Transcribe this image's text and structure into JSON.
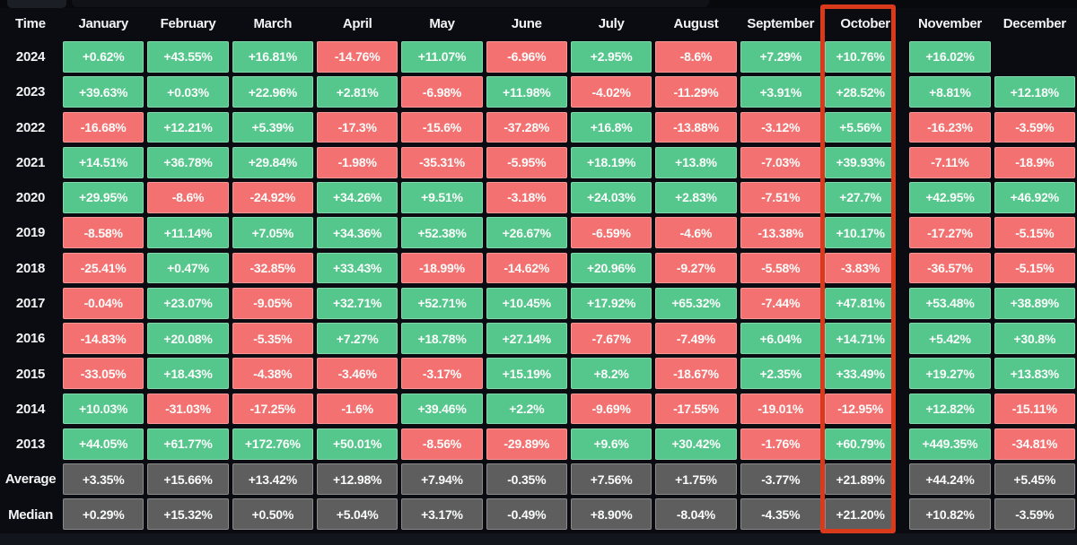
{
  "header": {
    "time_label": "Time"
  },
  "chart_data": {
    "type": "heatmap",
    "columns": [
      "January",
      "February",
      "March",
      "April",
      "May",
      "June",
      "July",
      "August",
      "September",
      "October",
      "November",
      "December"
    ],
    "highlighted_column": "October",
    "rows": [
      {
        "label": "2024",
        "kind": "year",
        "values": [
          "+0.62%",
          "+43.55%",
          "+16.81%",
          "-14.76%",
          "+11.07%",
          "-6.96%",
          "+2.95%",
          "-8.6%",
          "+7.29%",
          "+10.76%",
          "+16.02%",
          ""
        ]
      },
      {
        "label": "2023",
        "kind": "year",
        "values": [
          "+39.63%",
          "+0.03%",
          "+22.96%",
          "+2.81%",
          "-6.98%",
          "+11.98%",
          "-4.02%",
          "-11.29%",
          "+3.91%",
          "+28.52%",
          "+8.81%",
          "+12.18%"
        ]
      },
      {
        "label": "2022",
        "kind": "year",
        "values": [
          "-16.68%",
          "+12.21%",
          "+5.39%",
          "-17.3%",
          "-15.6%",
          "-37.28%",
          "+16.8%",
          "-13.88%",
          "-3.12%",
          "+5.56%",
          "-16.23%",
          "-3.59%"
        ]
      },
      {
        "label": "2021",
        "kind": "year",
        "values": [
          "+14.51%",
          "+36.78%",
          "+29.84%",
          "-1.98%",
          "-35.31%",
          "-5.95%",
          "+18.19%",
          "+13.8%",
          "-7.03%",
          "+39.93%",
          "-7.11%",
          "-18.9%"
        ]
      },
      {
        "label": "2020",
        "kind": "year",
        "values": [
          "+29.95%",
          "-8.6%",
          "-24.92%",
          "+34.26%",
          "+9.51%",
          "-3.18%",
          "+24.03%",
          "+2.83%",
          "-7.51%",
          "+27.7%",
          "+42.95%",
          "+46.92%"
        ]
      },
      {
        "label": "2019",
        "kind": "year",
        "values": [
          "-8.58%",
          "+11.14%",
          "+7.05%",
          "+34.36%",
          "+52.38%",
          "+26.67%",
          "-6.59%",
          "-4.6%",
          "-13.38%",
          "+10.17%",
          "-17.27%",
          "-5.15%"
        ]
      },
      {
        "label": "2018",
        "kind": "year",
        "values": [
          "-25.41%",
          "+0.47%",
          "-32.85%",
          "+33.43%",
          "-18.99%",
          "-14.62%",
          "+20.96%",
          "-9.27%",
          "-5.58%",
          "-3.83%",
          "-36.57%",
          "-5.15%"
        ]
      },
      {
        "label": "2017",
        "kind": "year",
        "values": [
          "-0.04%",
          "+23.07%",
          "-9.05%",
          "+32.71%",
          "+52.71%",
          "+10.45%",
          "+17.92%",
          "+65.32%",
          "-7.44%",
          "+47.81%",
          "+53.48%",
          "+38.89%"
        ]
      },
      {
        "label": "2016",
        "kind": "year",
        "values": [
          "-14.83%",
          "+20.08%",
          "-5.35%",
          "+7.27%",
          "+18.78%",
          "+27.14%",
          "-7.67%",
          "-7.49%",
          "+6.04%",
          "+14.71%",
          "+5.42%",
          "+30.8%"
        ]
      },
      {
        "label": "2015",
        "kind": "year",
        "values": [
          "-33.05%",
          "+18.43%",
          "-4.38%",
          "-3.46%",
          "-3.17%",
          "+15.19%",
          "+8.2%",
          "-18.67%",
          "+2.35%",
          "+33.49%",
          "+19.27%",
          "+13.83%"
        ]
      },
      {
        "label": "2014",
        "kind": "year",
        "values": [
          "+10.03%",
          "-31.03%",
          "-17.25%",
          "-1.6%",
          "+39.46%",
          "+2.2%",
          "-9.69%",
          "-17.55%",
          "-19.01%",
          "-12.95%",
          "+12.82%",
          "-15.11%"
        ]
      },
      {
        "label": "2013",
        "kind": "year",
        "values": [
          "+44.05%",
          "+61.77%",
          "+172.76%",
          "+50.01%",
          "-8.56%",
          "-29.89%",
          "+9.6%",
          "+30.42%",
          "-1.76%",
          "+60.79%",
          "+449.35%",
          "-34.81%"
        ]
      },
      {
        "label": "Average",
        "kind": "summary",
        "values": [
          "+3.35%",
          "+15.66%",
          "+13.42%",
          "+12.98%",
          "+7.94%",
          "-0.35%",
          "+7.56%",
          "+1.75%",
          "-3.77%",
          "+21.89%",
          "+44.24%",
          "+5.45%"
        ]
      },
      {
        "label": "Median",
        "kind": "summary",
        "values": [
          "+0.29%",
          "+15.32%",
          "+0.50%",
          "+5.04%",
          "+3.17%",
          "-0.49%",
          "+8.90%",
          "-8.04%",
          "-4.35%",
          "+21.20%",
          "+10.82%",
          "-3.59%"
        ]
      }
    ],
    "colors": {
      "positive": "#55c78c",
      "negative": "#f47171",
      "summary": "#5e5e5e",
      "highlight_border": "#da3a1c"
    }
  }
}
